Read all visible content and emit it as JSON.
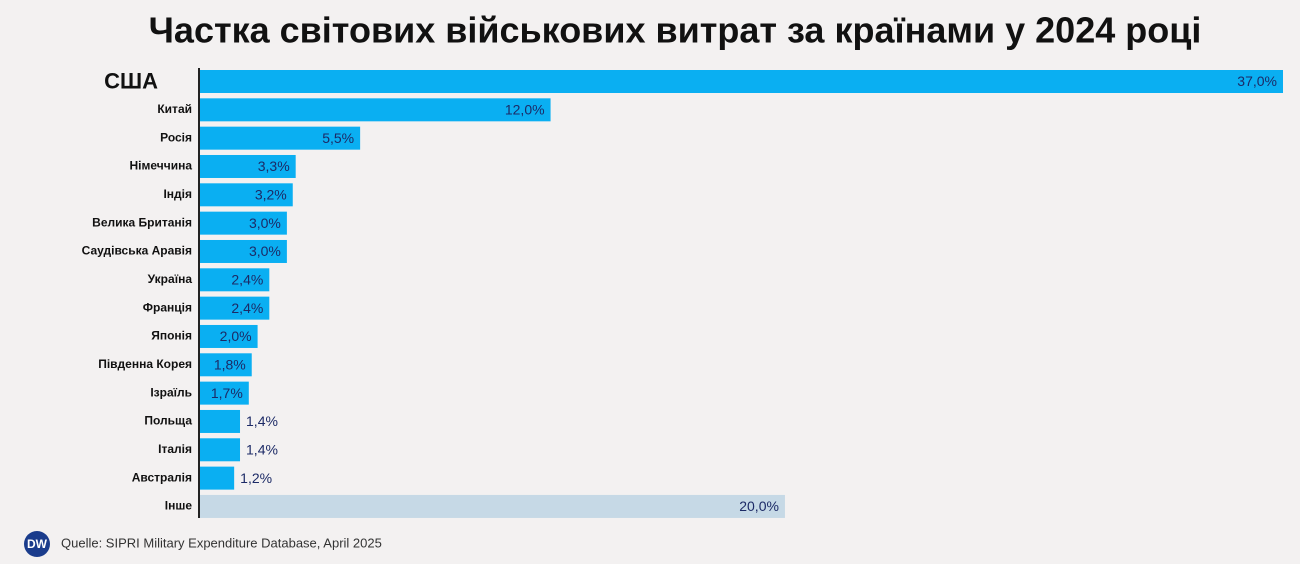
{
  "chart_data": {
    "type": "bar",
    "orientation": "horizontal",
    "title": "Частка світових військових витрат за країнами у 2024 році",
    "categories": [
      "США",
      "Китай",
      "Росія",
      "Німеччина",
      "Індія",
      "Велика Британія",
      "Саудівська Аравія",
      "Україна",
      "Франція",
      "Японія",
      "Південна Корея",
      "Ізраїль",
      "Польща",
      "Італія",
      "Австралія",
      "Інше"
    ],
    "values": [
      37.0,
      12.0,
      5.5,
      3.3,
      3.2,
      3.0,
      3.0,
      2.4,
      2.4,
      2.0,
      1.8,
      1.7,
      1.4,
      1.4,
      1.2,
      20.0
    ],
    "value_labels": [
      "37,0%",
      "12,0%",
      "5,5%",
      "3,3%",
      "3,2%",
      "3,0%",
      "3,0%",
      "2,4%",
      "2,4%",
      "2,0%",
      "1,8%",
      "1,7%",
      "1,4%",
      "1,4%",
      "1,2%",
      "20,0%"
    ],
    "colors": [
      "#0aaff2",
      "#0aaff2",
      "#0aaff2",
      "#0aaff2",
      "#0aaff2",
      "#0aaff2",
      "#0aaff2",
      "#0aaff2",
      "#0aaff2",
      "#0aaff2",
      "#0aaff2",
      "#0aaff2",
      "#0aaff2",
      "#0aaff2",
      "#0aaff2",
      "#c6d9e6"
    ]
  },
  "footer": {
    "logo": "DW",
    "source": "Quelle: SIPRI Military Expenditure Database, April 2025"
  }
}
